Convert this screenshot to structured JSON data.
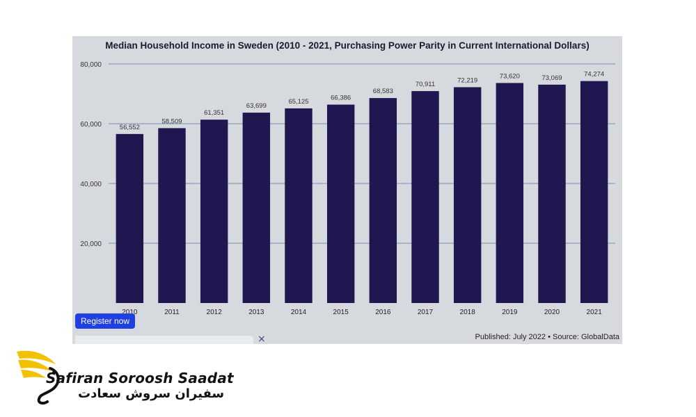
{
  "chart_data": {
    "type": "bar",
    "title": "Median Household Income in Sweden (2010 - 2021, Purchasing Power Parity in Current International Dollars)",
    "categories": [
      "2010",
      "2011",
      "2012",
      "2013",
      "2014",
      "2015",
      "2016",
      "2017",
      "2018",
      "2019",
      "2020",
      "2021"
    ],
    "values": [
      56552,
      58509,
      61351,
      63699,
      65125,
      66386,
      68583,
      70911,
      72219,
      73620,
      73069,
      74274
    ],
    "data_labels": [
      "56,552",
      "58,509",
      "61,351",
      "63,699",
      "65,125",
      "66,386",
      "68,583",
      "70,911",
      "72,219",
      "73,620",
      "73,069",
      "74,274"
    ],
    "y_ticks": [
      20000,
      40000,
      60000,
      80000
    ],
    "y_tick_labels": [
      "20,000",
      "40,000",
      "60,000",
      "80,000"
    ],
    "ylim": [
      0,
      80000
    ],
    "xlabel": "",
    "ylabel": "",
    "grid": true,
    "bar_color": "#201650",
    "gridline_color": "#7f8fb0",
    "background_color": "#d6dadf"
  },
  "register_button": {
    "label": "Register now",
    "color": "#1f3fe0"
  },
  "popup": {
    "close_icon": "×"
  },
  "source_note": "Published: July 2022 • Source: GlobalData",
  "branding": {
    "latin": "Safiran Soroosh Saadat",
    "persian": "سفیران سروش سعادت",
    "accent_color": "#f2c200"
  }
}
